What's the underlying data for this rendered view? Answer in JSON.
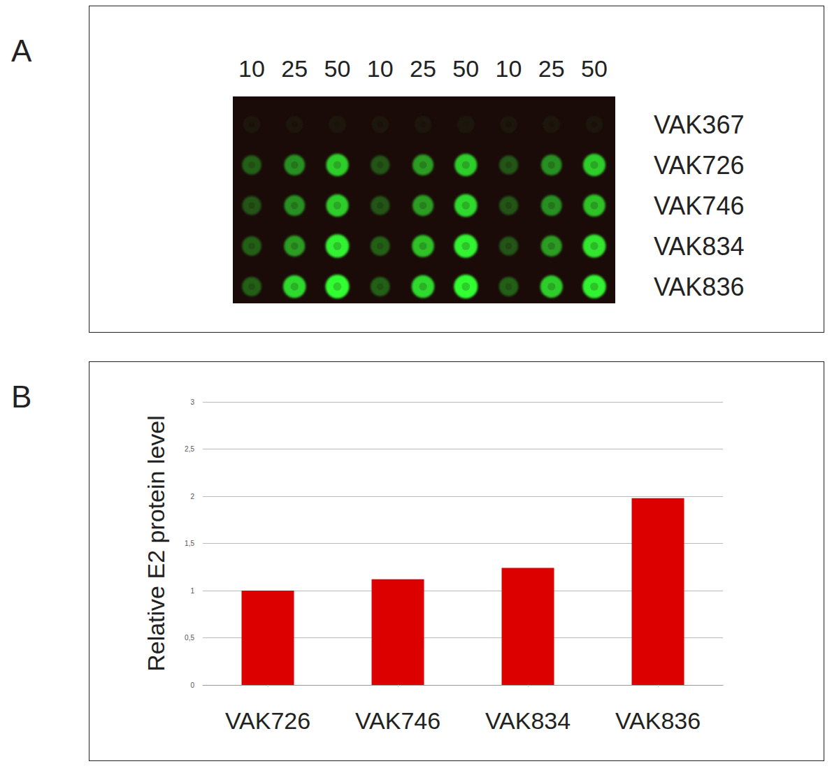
{
  "panel_labels": [
    "A",
    "B"
  ],
  "dot_blot": {
    "columns": [
      10,
      25,
      50,
      10,
      25,
      50,
      10,
      25,
      50
    ],
    "rows": [
      "VAK367",
      "VAK726",
      "VAK746",
      "VAK834",
      "VAK836"
    ],
    "color": "#33ff33",
    "intensity": [
      [
        0.03,
        0.03,
        0.04,
        0.03,
        0.03,
        0.05,
        0.03,
        0.03,
        0.03
      ],
      [
        0.35,
        0.55,
        0.8,
        0.3,
        0.6,
        0.8,
        0.3,
        0.55,
        0.8
      ],
      [
        0.3,
        0.55,
        0.8,
        0.3,
        0.6,
        0.85,
        0.3,
        0.55,
        0.75
      ],
      [
        0.35,
        0.6,
        0.95,
        0.35,
        0.75,
        0.95,
        0.3,
        0.6,
        0.9
      ],
      [
        0.35,
        0.85,
        1,
        0.35,
        0.85,
        1,
        0.35,
        0.8,
        0.95
      ]
    ]
  },
  "chart_data": {
    "type": "bar",
    "y_label": "Relative E2 protein level",
    "categories": [
      "VAK726",
      "VAK746",
      "VAK834",
      "VAK836"
    ],
    "values": [
      1.0,
      1.12,
      1.24,
      1.98
    ],
    "color": "#dd0000",
    "ylim": [
      0,
      3
    ],
    "yticks": [
      0,
      {
        "value": 0.5,
        "label": "0,5"
      },
      1,
      {
        "value": 1.5,
        "label": "1,5"
      },
      2,
      {
        "value": 2.5,
        "label": "2,5"
      },
      3
    ],
    "grid": true
  }
}
